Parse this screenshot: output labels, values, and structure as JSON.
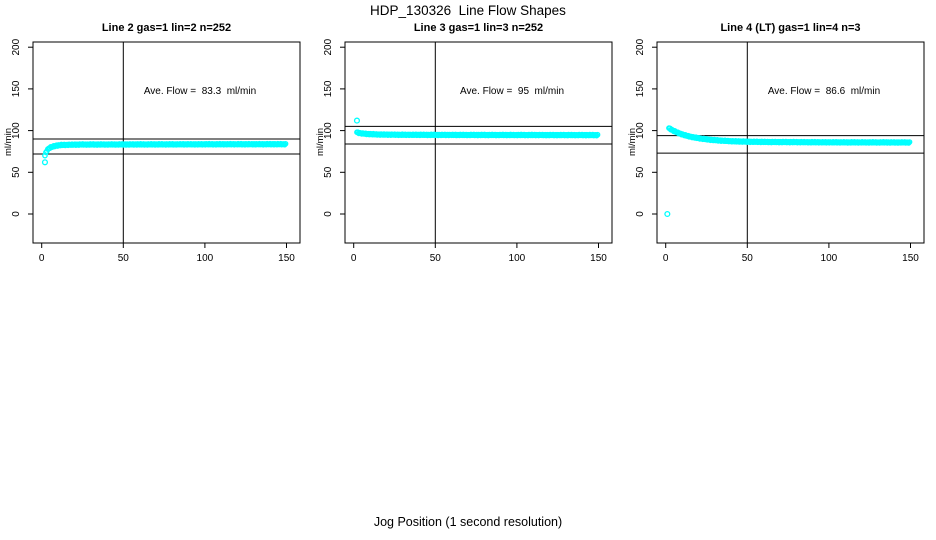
{
  "title": "HDP_130326  Line Flow Shapes",
  "xlabel": "Jog Position (1 second resolution)",
  "ylabel": "ml/min",
  "colors": {
    "points": "#00FFFF",
    "axis": "#000000",
    "background": "#FFFFFF"
  },
  "chart_data": [
    {
      "type": "scatter",
      "title": "Line 2 gas=1 lin=2 n=252",
      "annotation": "Ave. Flow =  83.3  ml/min",
      "ave_flow_ml_min": 83.3,
      "n": 252,
      "marker": "open-circle",
      "xlim": [
        0,
        150
      ],
      "ylim": [
        0,
        200
      ],
      "x_ticks": [
        0,
        50,
        100,
        150
      ],
      "y_ticks": [
        0,
        50,
        100,
        150,
        200
      ],
      "vline_x": 50,
      "hlines": [
        90,
        72
      ],
      "curve": [
        [
          2,
          70
        ],
        [
          2.5,
          73
        ],
        [
          3,
          75.5
        ],
        [
          4,
          78
        ],
        [
          5,
          79.5
        ],
        [
          7,
          81
        ],
        [
          9,
          82
        ],
        [
          12,
          82.7
        ],
        [
          16,
          83
        ],
        [
          25,
          83.3
        ],
        [
          50,
          83.4
        ],
        [
          100,
          83.6
        ],
        [
          150,
          83.7
        ]
      ],
      "outliers": [
        [
          2,
          62
        ]
      ]
    },
    {
      "type": "scatter",
      "title": "Line 3 gas=1 lin=3 n=252",
      "annotation": "Ave. Flow =  95  ml/min",
      "ave_flow_ml_min": 95,
      "n": 252,
      "marker": "open-circle",
      "xlim": [
        0,
        150
      ],
      "ylim": [
        0,
        200
      ],
      "x_ticks": [
        0,
        50,
        100,
        150
      ],
      "y_ticks": [
        0,
        50,
        100,
        150,
        200
      ],
      "vline_x": 50,
      "hlines": [
        105,
        84
      ],
      "curve": [
        [
          2,
          98
        ],
        [
          3,
          97.3
        ],
        [
          5,
          96.6
        ],
        [
          8,
          96
        ],
        [
          12,
          95.6
        ],
        [
          18,
          95.2
        ],
        [
          30,
          95
        ],
        [
          60,
          94.8
        ],
        [
          100,
          94.7
        ],
        [
          150,
          94.6
        ]
      ],
      "outliers": [
        [
          2,
          112
        ]
      ]
    },
    {
      "type": "scatter",
      "title": "Line 4 (LT) gas=1 lin=4 n=3",
      "annotation": "Ave. Flow =  86.6  ml/min",
      "ave_flow_ml_min": 86.6,
      "n": 3,
      "marker": "open-circle",
      "xlim": [
        0,
        150
      ],
      "ylim": [
        0,
        200
      ],
      "x_ticks": [
        0,
        50,
        100,
        150
      ],
      "y_ticks": [
        0,
        50,
        100,
        150,
        200
      ],
      "vline_x": 50,
      "hlines": [
        94,
        73
      ],
      "curve": [
        [
          2,
          103
        ],
        [
          3,
          101.8
        ],
        [
          4,
          100.6
        ],
        [
          5,
          99.6
        ],
        [
          7,
          97.8
        ],
        [
          9,
          96.2
        ],
        [
          12,
          94.3
        ],
        [
          15,
          92.8
        ],
        [
          18,
          91.6
        ],
        [
          22,
          90.3
        ],
        [
          27,
          89.1
        ],
        [
          33,
          88.1
        ],
        [
          40,
          87.3
        ],
        [
          50,
          86.7
        ],
        [
          65,
          86.3
        ],
        [
          85,
          86.1
        ],
        [
          110,
          85.9
        ],
        [
          150,
          85.8
        ]
      ],
      "outliers": [
        [
          1,
          0
        ]
      ]
    }
  ]
}
